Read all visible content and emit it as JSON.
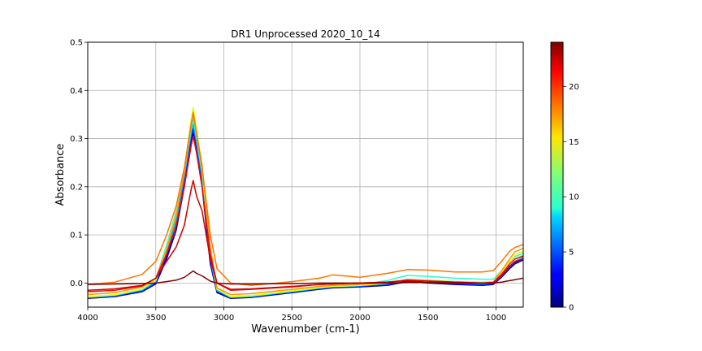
{
  "chart_data": {
    "type": "line",
    "title": "DR1 Unprocessed 2020_10_14",
    "xlabel": "Wavenumber (cm-1)",
    "ylabel": "Absorbance",
    "xlim": [
      4000,
      800
    ],
    "ylim": [
      -0.05,
      0.5
    ],
    "x_ticks": [
      4000,
      3500,
      3000,
      2500,
      2000,
      1500,
      1000
    ],
    "y_ticks": [
      0.0,
      0.1,
      0.2,
      0.3,
      0.4,
      0.5
    ],
    "x_tick_labels": [
      "4000",
      "3500",
      "3000",
      "2500",
      "2000",
      "1500",
      "1000"
    ],
    "y_tick_labels": [
      "0.0",
      "0.1",
      "0.2",
      "0.3",
      "0.4",
      "0.5"
    ],
    "grid": true,
    "colormap": "jet",
    "colorbar": {
      "min": 0,
      "max": 24,
      "ticks": [
        0,
        5,
        10,
        15,
        20
      ],
      "tick_labels": [
        "0",
        "5",
        "10",
        "15",
        "20"
      ]
    },
    "series": [
      {
        "index": 0,
        "color": "#00007f",
        "x": [
          4000,
          3800,
          3600,
          3500,
          3420,
          3350,
          3290,
          3240,
          3225,
          3200,
          3160,
          3100,
          3050,
          2950,
          2800,
          2500,
          2300,
          2200,
          2000,
          1800,
          1650,
          1500,
          1300,
          1100,
          1020,
          960,
          900,
          860,
          800
        ],
        "y": [
          -0.032,
          -0.028,
          -0.018,
          -0.002,
          0.05,
          0.11,
          0.2,
          0.29,
          0.31,
          0.27,
          0.2,
          0.04,
          -0.02,
          -0.032,
          -0.03,
          -0.02,
          -0.013,
          -0.01,
          -0.008,
          -0.005,
          0.003,
          0.0,
          -0.003,
          -0.005,
          -0.003,
          0.012,
          0.03,
          0.04,
          0.048
        ]
      },
      {
        "index": 3,
        "color": "#0000ff",
        "x": [
          4000,
          3800,
          3600,
          3500,
          3420,
          3350,
          3290,
          3240,
          3225,
          3200,
          3160,
          3100,
          3050,
          2950,
          2800,
          2500,
          2300,
          2200,
          2000,
          1800,
          1650,
          1500,
          1300,
          1100,
          1020,
          960,
          900,
          860,
          800
        ],
        "y": [
          -0.031,
          -0.027,
          -0.017,
          -0.001,
          0.055,
          0.12,
          0.21,
          0.3,
          0.32,
          0.28,
          0.21,
          0.045,
          -0.018,
          -0.031,
          -0.029,
          -0.019,
          -0.012,
          -0.009,
          -0.007,
          -0.004,
          0.004,
          0.001,
          -0.002,
          -0.004,
          -0.002,
          0.013,
          0.032,
          0.042,
          0.05
        ]
      },
      {
        "index": 6,
        "color": "#00a4ff",
        "x": [
          4000,
          3800,
          3600,
          3500,
          3420,
          3350,
          3290,
          3240,
          3225,
          3200,
          3160,
          3100,
          3050,
          2950,
          2800,
          2500,
          2300,
          2200,
          2000,
          1800,
          1650,
          1500,
          1300,
          1100,
          1020,
          960,
          900,
          860,
          800
        ],
        "y": [
          -0.03,
          -0.026,
          -0.015,
          0.002,
          0.065,
          0.13,
          0.22,
          0.31,
          0.33,
          0.29,
          0.22,
          0.05,
          -0.016,
          -0.03,
          -0.028,
          -0.018,
          -0.011,
          -0.008,
          -0.006,
          -0.002,
          0.008,
          0.004,
          0.0,
          -0.002,
          0.0,
          0.015,
          0.035,
          0.045,
          0.053
        ]
      },
      {
        "index": 9,
        "color": "#26ffd0",
        "x": [
          4000,
          3800,
          3600,
          3500,
          3420,
          3350,
          3290,
          3240,
          3225,
          3200,
          3160,
          3100,
          3050,
          2950,
          2800,
          2500,
          2300,
          2200,
          2000,
          1800,
          1650,
          1500,
          1300,
          1100,
          1020,
          960,
          900,
          860,
          800
        ],
        "y": [
          -0.029,
          -0.025,
          -0.012,
          0.008,
          0.08,
          0.15,
          0.23,
          0.32,
          0.34,
          0.3,
          0.23,
          0.06,
          -0.012,
          -0.028,
          -0.026,
          -0.016,
          -0.009,
          -0.006,
          -0.003,
          0.005,
          0.016,
          0.014,
          0.01,
          0.008,
          0.008,
          0.025,
          0.045,
          0.055,
          0.062
        ]
      },
      {
        "index": 12,
        "color": "#7dff7a",
        "x": [
          4000,
          3800,
          3600,
          3500,
          3420,
          3350,
          3290,
          3240,
          3225,
          3200,
          3160,
          3100,
          3050,
          2950,
          2800,
          2500,
          2300,
          2200,
          2000,
          1800,
          1650,
          1500,
          1300,
          1100,
          1020,
          960,
          900,
          860,
          800
        ],
        "y": [
          -0.029,
          -0.025,
          -0.013,
          0.006,
          0.075,
          0.145,
          0.23,
          0.33,
          0.35,
          0.31,
          0.235,
          0.065,
          -0.013,
          -0.029,
          -0.027,
          -0.017,
          -0.01,
          -0.007,
          -0.005,
          0.0,
          0.008,
          0.006,
          0.003,
          0.002,
          0.003,
          0.02,
          0.04,
          0.05,
          0.058
        ]
      },
      {
        "index": 15,
        "color": "#e4ff13",
        "x": [
          4000,
          3800,
          3600,
          3500,
          3420,
          3350,
          3290,
          3240,
          3225,
          3200,
          3160,
          3100,
          3050,
          2950,
          2800,
          2500,
          2300,
          2200,
          2000,
          1800,
          1650,
          1500,
          1300,
          1100,
          1020,
          960,
          900,
          860,
          800
        ],
        "y": [
          -0.028,
          -0.024,
          -0.012,
          0.007,
          0.07,
          0.14,
          0.235,
          0.34,
          0.365,
          0.32,
          0.24,
          0.07,
          -0.012,
          -0.028,
          -0.026,
          -0.016,
          -0.009,
          -0.007,
          -0.005,
          0.0,
          0.007,
          0.005,
          0.002,
          0.0,
          0.002,
          0.022,
          0.045,
          0.058,
          0.066
        ]
      },
      {
        "index": 18,
        "color": "#ff9400",
        "x": [
          4000,
          3800,
          3600,
          3500,
          3420,
          3350,
          3290,
          3240,
          3225,
          3200,
          3160,
          3100,
          3050,
          2950,
          2800,
          2500,
          2300,
          2200,
          2000,
          1800,
          1650,
          1500,
          1300,
          1100,
          1020,
          960,
          900,
          860,
          800
        ],
        "y": [
          -0.024,
          -0.02,
          -0.008,
          0.01,
          0.07,
          0.14,
          0.23,
          0.33,
          0.355,
          0.31,
          0.245,
          0.075,
          -0.01,
          -0.024,
          -0.022,
          -0.013,
          -0.007,
          -0.005,
          -0.003,
          0.001,
          0.007,
          0.005,
          0.002,
          0.0,
          0.002,
          0.025,
          0.05,
          0.065,
          0.072
        ]
      },
      {
        "index": 19,
        "color": "#ff7300",
        "x": [
          4000,
          3800,
          3600,
          3500,
          3420,
          3350,
          3290,
          3240,
          3225,
          3200,
          3160,
          3100,
          3050,
          2950,
          2800,
          2500,
          2300,
          2200,
          2000,
          1800,
          1650,
          1500,
          1300,
          1100,
          1020,
          960,
          900,
          860,
          800
        ],
        "y": [
          -0.003,
          0.002,
          0.018,
          0.045,
          0.1,
          0.16,
          0.24,
          0.33,
          0.352,
          0.31,
          0.24,
          0.1,
          0.03,
          0.0,
          -0.005,
          0.003,
          0.01,
          0.017,
          0.012,
          0.02,
          0.028,
          0.027,
          0.023,
          0.023,
          0.026,
          0.045,
          0.066,
          0.074,
          0.08
        ]
      },
      {
        "index": 21,
        "color": "#f10800",
        "x": [
          4000,
          3800,
          3600,
          3500,
          3420,
          3350,
          3290,
          3240,
          3225,
          3200,
          3160,
          3100,
          3050,
          2950,
          2800,
          2500,
          2300,
          2200,
          2000,
          1800,
          1650,
          1500,
          1300,
          1100,
          1020,
          960,
          900,
          860,
          800
        ],
        "y": [
          -0.018,
          -0.015,
          -0.006,
          0.01,
          0.06,
          0.12,
          0.2,
          0.285,
          0.305,
          0.27,
          0.2,
          0.06,
          0.0,
          -0.015,
          -0.013,
          -0.008,
          -0.003,
          -0.002,
          0.0,
          0.002,
          0.006,
          0.004,
          0.002,
          0.0,
          0.001,
          0.018,
          0.04,
          0.05,
          0.056
        ]
      },
      {
        "index": 22,
        "color": "#d20000",
        "x": [
          4000,
          3800,
          3600,
          3500,
          3420,
          3350,
          3290,
          3240,
          3225,
          3200,
          3160,
          3100,
          3050,
          2950,
          2800,
          2500,
          2300,
          2200,
          2000,
          1800,
          1650,
          1500,
          1300,
          1100,
          1020,
          960,
          900,
          860,
          800
        ],
        "y": [
          -0.015,
          -0.012,
          -0.005,
          0.01,
          0.045,
          0.075,
          0.12,
          0.195,
          0.213,
          0.18,
          0.15,
          0.05,
          0.0,
          -0.013,
          -0.012,
          -0.007,
          -0.003,
          -0.002,
          0.0,
          0.002,
          0.005,
          0.004,
          0.002,
          0.0,
          0.001,
          0.015,
          0.035,
          0.045,
          0.05
        ]
      },
      {
        "index": 24,
        "color": "#7f0000",
        "x": [
          4000,
          3800,
          3600,
          3500,
          3420,
          3350,
          3290,
          3240,
          3225,
          3200,
          3160,
          3100,
          3050,
          2950,
          2800,
          2500,
          2300,
          2200,
          2000,
          1800,
          1650,
          1500,
          1300,
          1100,
          1020,
          960,
          900,
          860,
          800
        ],
        "y": [
          -0.003,
          -0.002,
          -0.001,
          0.0,
          0.003,
          0.006,
          0.012,
          0.022,
          0.025,
          0.02,
          0.015,
          0.004,
          0.0,
          -0.002,
          -0.002,
          -0.001,
          0.0,
          0.0,
          0.0,
          0.0,
          0.001,
          0.001,
          0.0,
          0.0,
          0.0,
          0.002,
          0.005,
          0.007,
          0.01
        ]
      }
    ]
  }
}
